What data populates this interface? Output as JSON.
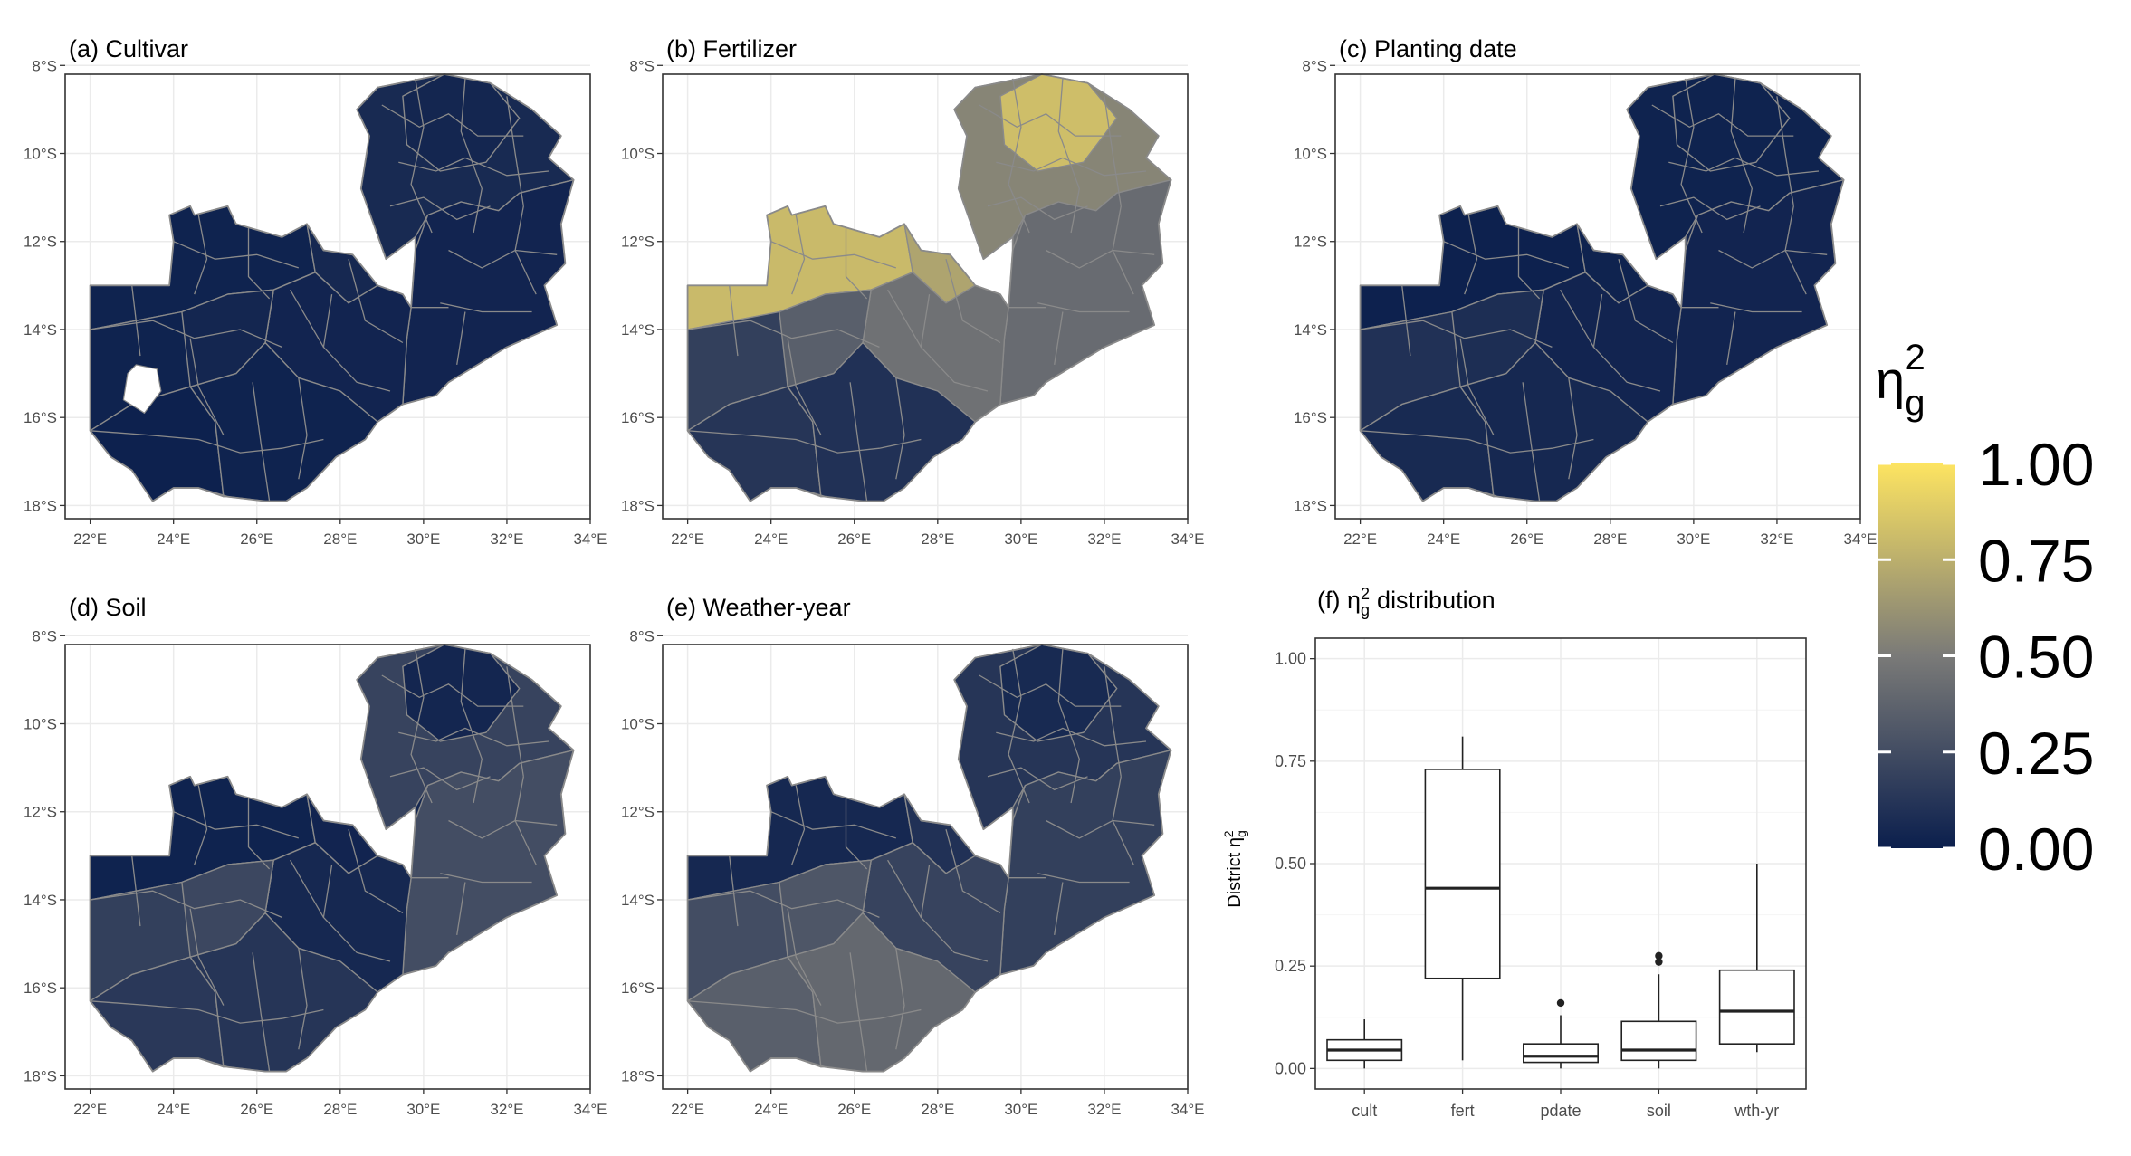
{
  "colors": {
    "scale_low": "#0b1f4d",
    "scale_mid": "#7a7a78",
    "scale_high": "#fde461",
    "district_border": "#8a8a8a",
    "panel_border": "#333333",
    "grid": "#ebebeb",
    "axis_text": "#4d4d4d"
  },
  "map_axes": {
    "lon_ticks": [
      "22°E",
      "24°E",
      "26°E",
      "28°E",
      "30°E",
      "32°E",
      "34°E"
    ],
    "lat_ticks": [
      "8°S",
      "10°S",
      "12°S",
      "14°S",
      "16°S",
      "18°S"
    ],
    "lon_range": [
      22,
      34
    ],
    "lat_range": [
      -18.3,
      -8.2
    ]
  },
  "legend": {
    "title_symbol": "η",
    "title_sub": "g",
    "title_sup": "2",
    "ticks": [
      "1.00",
      "0.75",
      "0.50",
      "0.25",
      "0.00"
    ],
    "tick_values": [
      1.0,
      0.75,
      0.5,
      0.25,
      0.0
    ]
  },
  "panels": [
    {
      "title": "(a) Cultivar",
      "region_values": {
        "nw": 0.02,
        "north": 0.04,
        "ne": 0.06,
        "center": 0.03,
        "copperbelt": 0.05,
        "east": 0.03,
        "west": 0.02,
        "sw": 0.01,
        "south": 0.02,
        "extra": 0.04
      }
    },
    {
      "title": "(b) Fertilizer",
      "region_values": {
        "nw": 0.8,
        "north": 0.82,
        "ne": 0.55,
        "center": 0.45,
        "copperbelt": 0.7,
        "east": 0.42,
        "west": 0.18,
        "sw": 0.12,
        "south": 0.1,
        "extra": 0.35
      }
    },
    {
      "title": "(c) Planting date",
      "region_values": {
        "nw": 0.01,
        "north": 0.02,
        "ne": 0.02,
        "center": 0.03,
        "copperbelt": 0.02,
        "east": 0.03,
        "west": 0.1,
        "sw": 0.06,
        "south": 0.05,
        "extra": 0.08
      }
    },
    {
      "title": "(d) Soil",
      "region_values": {
        "nw": 0.02,
        "north": 0.04,
        "ne": 0.2,
        "center": 0.05,
        "copperbelt": 0.03,
        "east": 0.25,
        "west": 0.18,
        "sw": 0.14,
        "south": 0.12,
        "extra": 0.22
      }
    },
    {
      "title": "(e) Weather-year",
      "region_values": {
        "nw": 0.05,
        "north": 0.06,
        "ne": 0.12,
        "center": 0.2,
        "copperbelt": 0.1,
        "east": 0.18,
        "west": 0.25,
        "sw": 0.35,
        "south": 0.4,
        "extra": 0.3
      }
    }
  ],
  "chart_data": {
    "type": "box",
    "title": "(f) η²g distribution",
    "title_prefix": "(f) η",
    "title_sub": "g",
    "title_sup": "2",
    "title_suffix": "distribution",
    "ylabel_prefix": "District  η",
    "ylabel_sub": "g",
    "ylabel_sup": "2",
    "ylim": [
      0,
      1.05
    ],
    "y_ticks": [
      "0.00",
      "0.25",
      "0.50",
      "0.75",
      "1.00"
    ],
    "y_tick_values": [
      0,
      0.25,
      0.5,
      0.75,
      1.0
    ],
    "categories": [
      "cult",
      "fert",
      "pdate",
      "soil",
      "wth-yr"
    ],
    "boxes": [
      {
        "name": "cult",
        "whisker_low": 0.0,
        "q1": 0.02,
        "median": 0.045,
        "q3": 0.07,
        "whisker_high": 0.12,
        "outliers": []
      },
      {
        "name": "fert",
        "whisker_low": 0.02,
        "q1": 0.22,
        "median": 0.44,
        "q3": 0.73,
        "whisker_high": 0.81,
        "outliers": []
      },
      {
        "name": "pdate",
        "whisker_low": 0.0,
        "q1": 0.015,
        "median": 0.03,
        "q3": 0.06,
        "whisker_high": 0.13,
        "outliers": [
          0.16
        ]
      },
      {
        "name": "soil",
        "whisker_low": 0.0,
        "q1": 0.02,
        "median": 0.045,
        "q3": 0.115,
        "whisker_high": 0.23,
        "outliers": [
          0.26,
          0.275
        ]
      },
      {
        "name": "wth-yr",
        "whisker_low": 0.04,
        "q1": 0.06,
        "median": 0.14,
        "q3": 0.24,
        "whisker_high": 0.5,
        "outliers": []
      }
    ]
  }
}
